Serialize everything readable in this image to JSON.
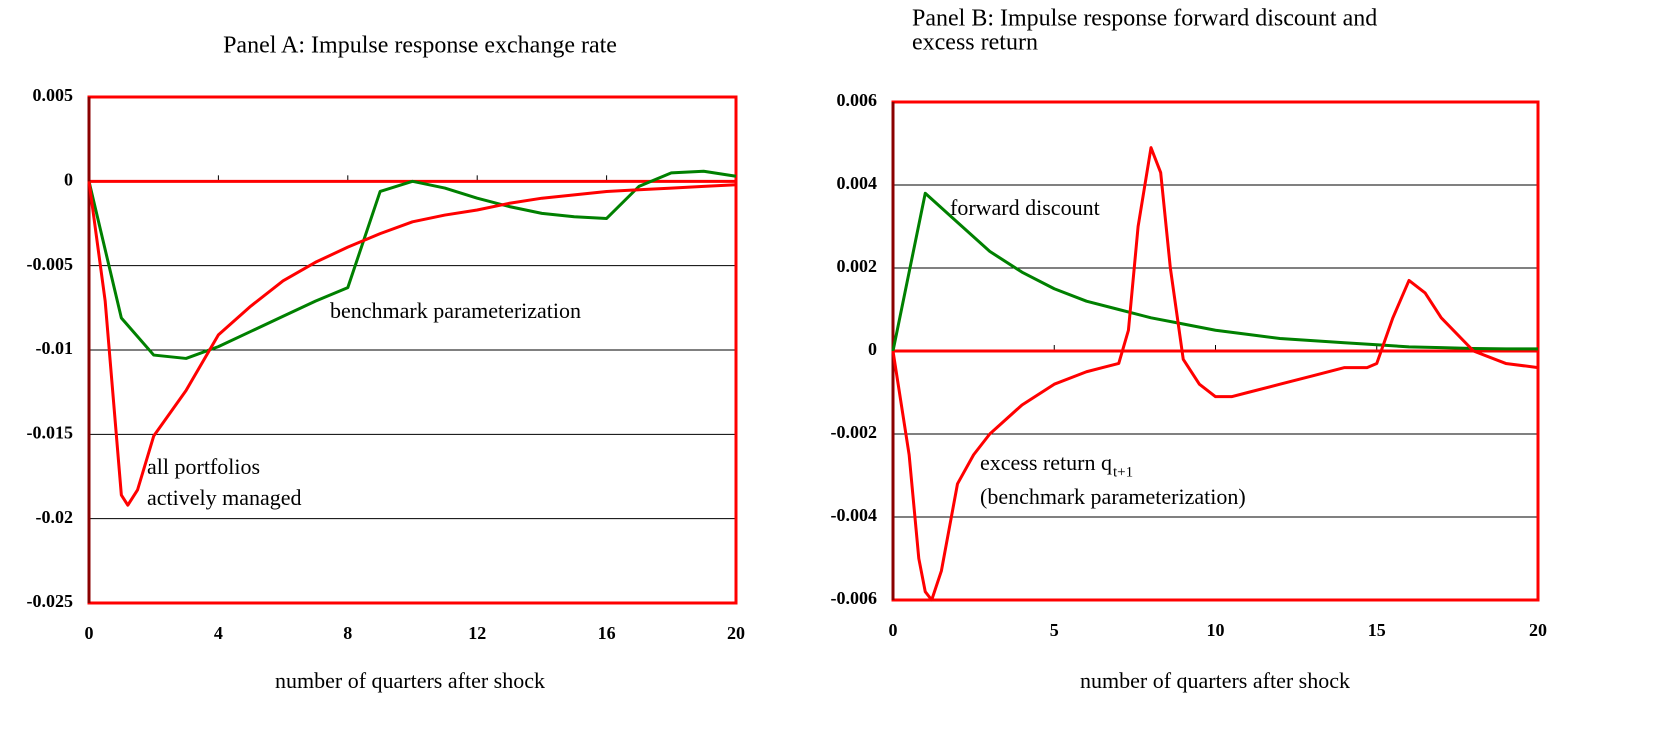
{
  "chart_data": [
    {
      "type": "line",
      "title": [
        "Panel A: Impulse response exchange rate"
      ],
      "xlabel": "number of  quarters after shock",
      "xlim": [
        0,
        20
      ],
      "xticks": [
        0,
        4,
        8,
        12,
        16,
        20
      ],
      "ylim": [
        -0.025,
        0.005
      ],
      "yticks": [
        0.005,
        0,
        -0.005,
        -0.01,
        -0.015,
        -0.02,
        -0.025
      ],
      "grid": true,
      "frame_color": "#ff0000",
      "annotations": [
        "benchmark parameterization",
        "all portfolios",
        "actively managed"
      ],
      "series": [
        {
          "color": "#008000",
          "x": [
            0,
            1,
            2,
            3,
            4,
            5,
            6,
            7,
            8,
            9,
            10,
            11,
            12,
            13,
            14,
            15,
            16,
            17,
            18,
            19,
            20
          ],
          "values": [
            0,
            -0.0081,
            -0.0103,
            -0.0105,
            -0.0098,
            -0.0089,
            -0.008,
            -0.0071,
            -0.0063,
            -0.0006,
            0,
            -0.0004,
            -0.001,
            -0.0015,
            -0.0019,
            -0.0021,
            -0.0022,
            -0.0003,
            0.0005,
            0.0006,
            0.0003
          ]
        },
        {
          "color": "#ff0000",
          "x": [
            0,
            0.5,
            1,
            1.2,
            1.5,
            2,
            3,
            4,
            5,
            6,
            7,
            8,
            9,
            10,
            11,
            12,
            13,
            14,
            15,
            16,
            17,
            18,
            19,
            20
          ],
          "values": [
            0,
            -0.0071,
            -0.0186,
            -0.0192,
            -0.0183,
            -0.0151,
            -0.0124,
            -0.0091,
            -0.0074,
            -0.0059,
            -0.0048,
            -0.0039,
            -0.0031,
            -0.0024,
            -0.002,
            -0.0017,
            -0.0013,
            -0.001,
            -0.0008,
            -0.0006,
            -0.0005,
            -0.0004,
            -0.0003,
            -0.0002
          ]
        }
      ]
    },
    {
      "type": "line",
      "title": [
        "Panel B: Impulse response forward discount and",
        "excess return"
      ],
      "xlabel": "number of  quarters after shock",
      "xlim": [
        0,
        20
      ],
      "xticks": [
        0,
        5,
        10,
        15,
        20
      ],
      "ylim": [
        -0.006,
        0.006
      ],
      "yticks": [
        0.006,
        0.004,
        0.002,
        0,
        -0.002,
        -0.004,
        -0.006
      ],
      "grid": true,
      "frame_color": "#ff0000",
      "annotations": [
        "forward discount",
        "excess return q",
        "t+1",
        "(benchmark parameterization)"
      ],
      "series": [
        {
          "color": "#008000",
          "x": [
            0,
            1,
            2,
            3,
            4,
            5,
            6,
            7,
            8,
            9,
            10,
            11,
            12,
            13,
            14,
            15,
            16,
            17,
            18,
            19,
            20
          ],
          "values": [
            0,
            0.0038,
            0.0031,
            0.0024,
            0.0019,
            0.0015,
            0.0012,
            0.001,
            0.0008,
            0.00065,
            0.0005,
            0.0004,
            0.0003,
            0.00025,
            0.0002,
            0.00015,
            0.0001,
            8e-05,
            6e-05,
            5e-05,
            5e-05
          ]
        },
        {
          "color": "#ff0000",
          "x": [
            0,
            0.5,
            0.8,
            1,
            1.2,
            1.5,
            2,
            2.5,
            3,
            4,
            5,
            6,
            6.5,
            7,
            7.3,
            7.6,
            8,
            8.3,
            8.6,
            9,
            9.5,
            10,
            10.5,
            11,
            12,
            13,
            14,
            14.7,
            15,
            15.5,
            16,
            16.5,
            17,
            18,
            19,
            20
          ],
          "values": [
            0,
            -0.0025,
            -0.005,
            -0.0058,
            -0.006,
            -0.0053,
            -0.0032,
            -0.0025,
            -0.002,
            -0.0013,
            -0.0008,
            -0.0005,
            -0.0004,
            -0.0003,
            0.0005,
            0.003,
            0.0049,
            0.0043,
            0.002,
            -0.0002,
            -0.0008,
            -0.0011,
            -0.0011,
            -0.001,
            -0.0008,
            -0.0006,
            -0.0004,
            -0.0004,
            -0.0003,
            0.0008,
            0.0017,
            0.0014,
            0.0008,
            0,
            -0.0003,
            -0.0004
          ]
        }
      ]
    }
  ]
}
